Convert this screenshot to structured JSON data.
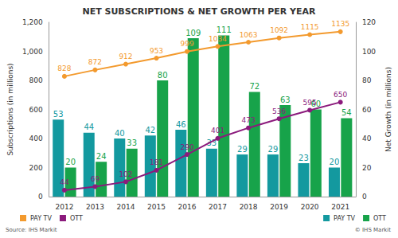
{
  "chart_data": {
    "type": "bar",
    "title": "NET SUBSCRIPTIONS & NET GROWTH PER YEAR",
    "source": "Source: IHS Markit",
    "credit": "© IHS Markit",
    "y_label": "Subscriptions (in millions)",
    "y2_label": "Net Growth (in millions)",
    "categories": [
      "2012",
      "2013",
      "2014",
      "2015",
      "2016",
      "2017",
      "2018",
      "2019",
      "2020",
      "2021"
    ],
    "series": [
      {
        "name": "PAY TV",
        "type": "line",
        "axis": "y",
        "color": "#f39a2e",
        "marker": "circle",
        "values": [
          828,
          872,
          912,
          953,
          999,
          1034,
          1063,
          1092,
          1115,
          1135
        ]
      },
      {
        "name": "OTT",
        "type": "line",
        "axis": "y",
        "color": "#8b1a7c",
        "marker": "circle",
        "values": [
          44,
          69,
          102,
          181,
          290,
          401,
          473,
          536,
          595,
          650
        ]
      },
      {
        "name": "PAY TV",
        "type": "bar",
        "axis": "y2",
        "color": "#13999f",
        "values": [
          53,
          44,
          40,
          42,
          46,
          33,
          29,
          29,
          23,
          20
        ]
      },
      {
        "name": "OTT",
        "type": "bar",
        "axis": "y2",
        "color": "#17a34a",
        "values": [
          20,
          24,
          33,
          80,
          109,
          111,
          72,
          63,
          60,
          54
        ]
      }
    ],
    "ylim": [
      0,
      1200
    ],
    "yticks": [
      0,
      200,
      400,
      600,
      800,
      1000,
      1200
    ],
    "y2lim": [
      0,
      120
    ],
    "y2ticks": [
      0,
      20,
      40,
      60,
      80,
      100,
      120
    ],
    "grid": false,
    "legend": "bottom",
    "data_labels": true
  }
}
